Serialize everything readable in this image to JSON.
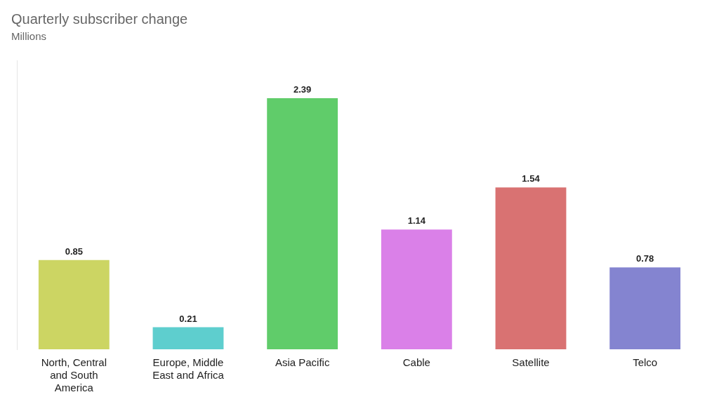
{
  "chart_data": {
    "type": "bar",
    "title": "Quarterly subscriber change",
    "subtitle": "Millions",
    "categories": [
      "North, Central\nand South\nAmerica",
      "Europe, Middle\nEast and Africa",
      "Asia Pacific",
      "Cable",
      "Satellite",
      "Telco"
    ],
    "values": [
      0.85,
      0.21,
      2.39,
      1.14,
      1.54,
      0.78
    ],
    "colors": [
      "#ccd563",
      "#5ecece",
      "#60cc6a",
      "#da80e8",
      "#d97272",
      "#8484d0"
    ],
    "ylim": [
      0,
      2.75
    ],
    "data_labels": true,
    "tick_labels": "x",
    "grid": false
  }
}
